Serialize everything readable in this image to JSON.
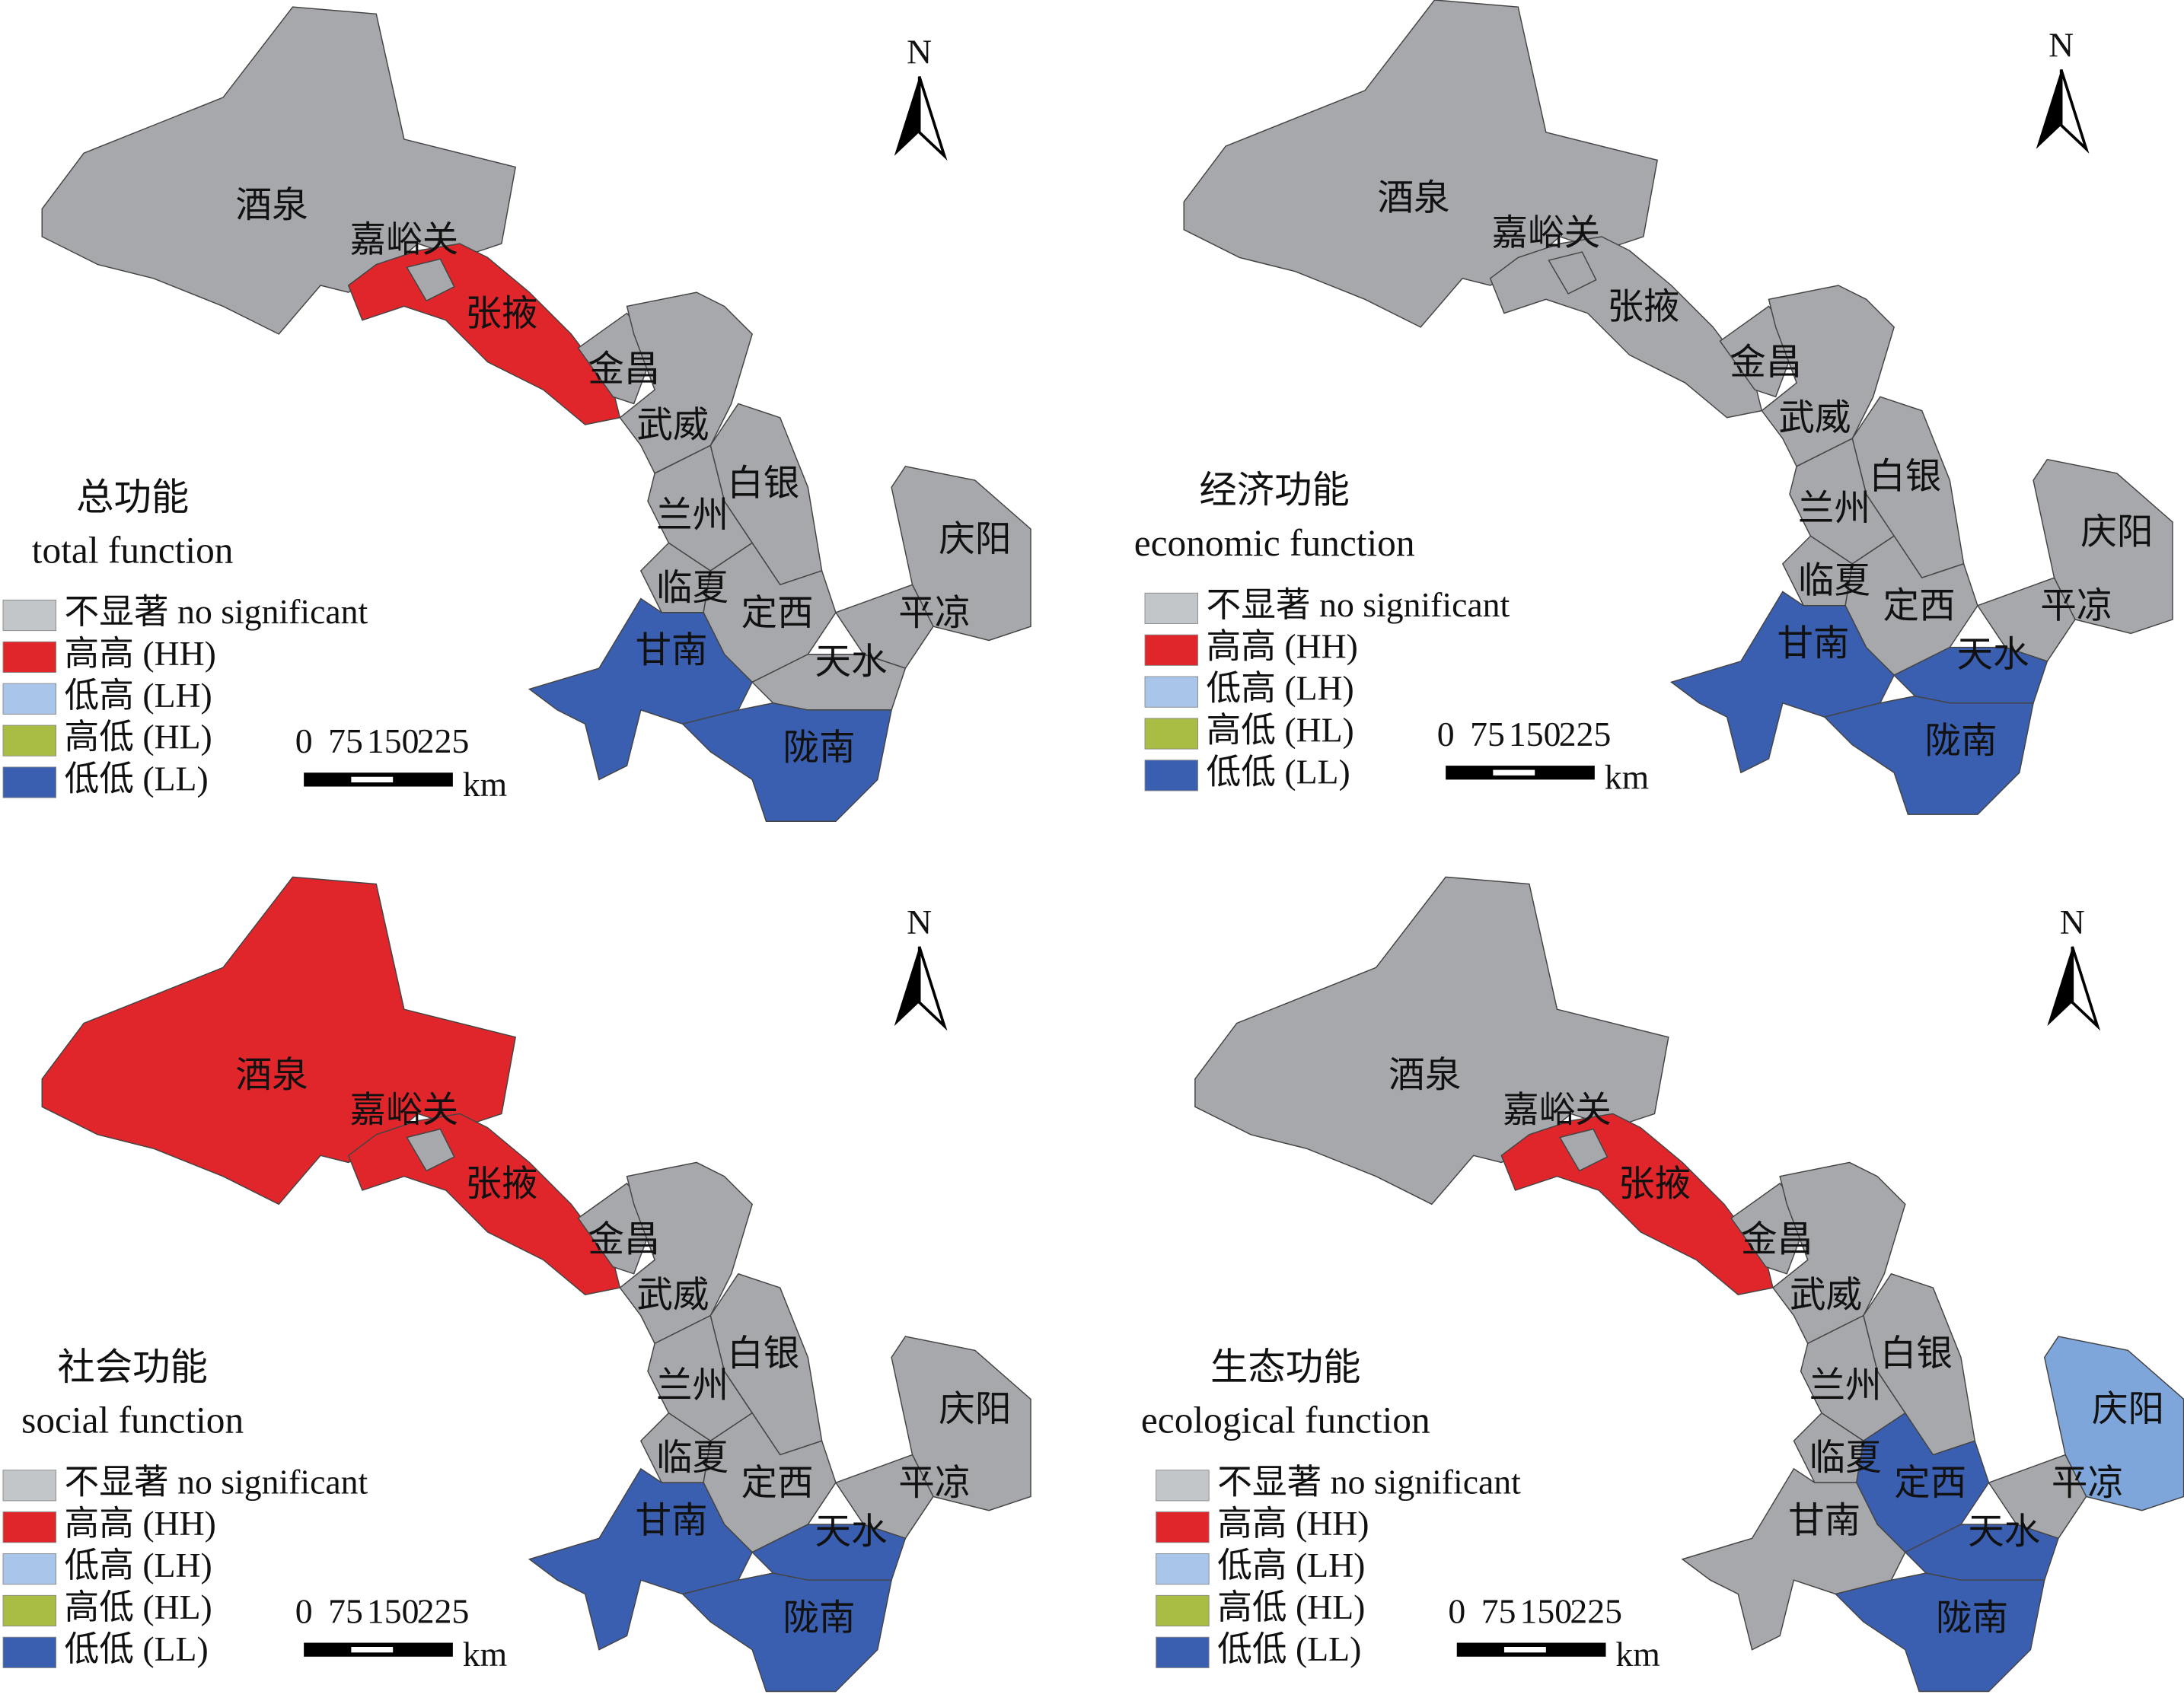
{
  "north": "N",
  "scale_ticks": [
    0,
    75,
    150,
    225
  ],
  "scale_unit": "km",
  "legend_items": [
    {
      "label": "不显著 no significant",
      "color": "#c3c6c8"
    },
    {
      "label": "高高 (HH)",
      "color": "#e0262b"
    },
    {
      "label": "低高 (LH)",
      "color": "#a9c6ea"
    },
    {
      "label": "高低 (HL)",
      "color": "#a9bd45"
    },
    {
      "label": "低低 (LL)",
      "color": "#3a5fb0"
    }
  ],
  "regions": [
    "酒泉",
    "嘉峪关",
    "张掖",
    "金昌",
    "武威",
    "白银",
    "兰州",
    "临夏",
    "定西",
    "庆阳",
    "平凉",
    "天水",
    "甘南",
    "陇南"
  ],
  "panels": [
    {
      "title_cn": "总功能",
      "title_en": "total function",
      "fills": [
        "#a6a8ab",
        "#a6a8ab",
        "#e0262b",
        "#a6a8ab",
        "#a6a8ab",
        "#a6a8ab",
        "#a6a8ab",
        "#a6a8ab",
        "#a6a8ab",
        "#a6a8ab",
        "#a6a8ab",
        "#a6a8ab",
        "#3a5fb0",
        "#3a5fb0"
      ]
    },
    {
      "title_cn": "经济功能",
      "title_en": "economic function",
      "fills": [
        "#a6a8ab",
        "#a6a8ab",
        "#a6a8ab",
        "#a6a8ab",
        "#a6a8ab",
        "#a6a8ab",
        "#a6a8ab",
        "#a6a8ab",
        "#a6a8ab",
        "#a6a8ab",
        "#a6a8ab",
        "#3a5fb0",
        "#3a5fb0",
        "#3a5fb0"
      ]
    },
    {
      "title_cn": "社会功能",
      "title_en": "social function",
      "fills": [
        "#e0262b",
        "#a6a8ab",
        "#e0262b",
        "#a6a8ab",
        "#a6a8ab",
        "#a6a8ab",
        "#a6a8ab",
        "#a6a8ab",
        "#a6a8ab",
        "#a6a8ab",
        "#a6a8ab",
        "#3a5fb0",
        "#3a5fb0",
        "#3a5fb0"
      ]
    },
    {
      "title_cn": "生态功能",
      "title_en": "ecological function",
      "fills": [
        "#a6a8ab",
        "#a6a8ab",
        "#e0262b",
        "#a6a8ab",
        "#a6a8ab",
        "#a6a8ab",
        "#a6a8ab",
        "#a6a8ab",
        "#3a5fb0",
        "#7ea6da",
        "#a6a8ab",
        "#3a5fb0",
        "#a6a8ab",
        "#3a5fb0"
      ]
    }
  ]
}
